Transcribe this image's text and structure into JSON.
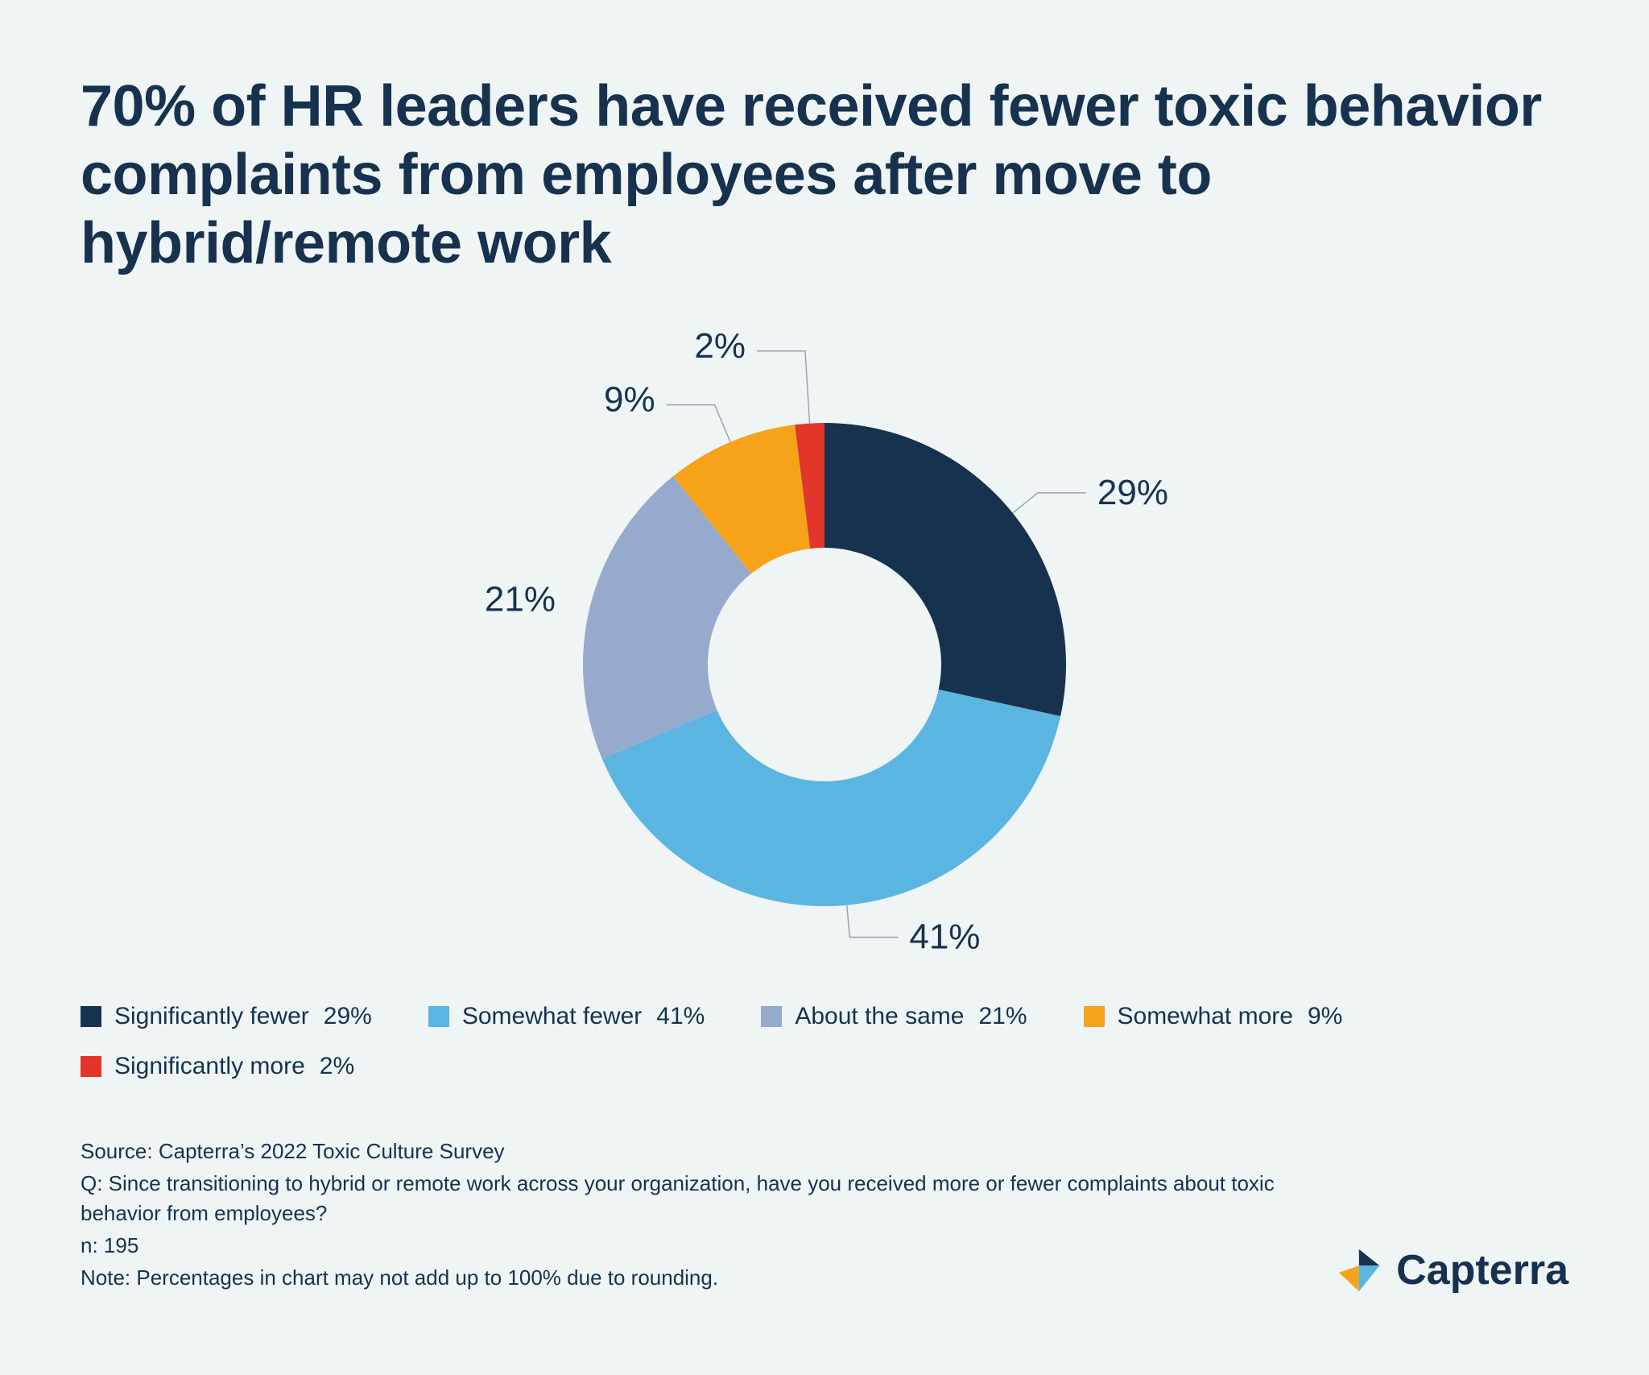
{
  "title": "70% of HR leaders have received fewer toxic behavior complaints from employees after move to hybrid/remote work",
  "chart": {
    "type": "donut",
    "background_color": "#eff4f4",
    "text_color": "#17324f",
    "outer_radius": 300,
    "inner_radius": 145,
    "label_fontsize": 44,
    "legend_fontsize": 30,
    "title_fontsize": 72,
    "title_fontweight": 800,
    "leader_color": "#9aa5b0",
    "slices": [
      {
        "label": "Significantly fewer",
        "value": 29,
        "display": "29%",
        "color": "#17324f"
      },
      {
        "label": "Somewhat fewer",
        "value": 41,
        "display": "41%",
        "color": "#5bb5e1"
      },
      {
        "label": "About the same",
        "value": 21,
        "display": "21%",
        "color": "#96aacd"
      },
      {
        "label": "Somewhat more",
        "value": 9,
        "display": "9%",
        "color": "#f6a31a"
      },
      {
        "label": "Significantly more",
        "value": 2,
        "display": "2%",
        "color": "#e2362a"
      }
    ]
  },
  "footnotes": {
    "source": "Source: Capterra’s 2022 Toxic Culture Survey",
    "question": "Q: Since transitioning to hybrid or remote work across your organization, have you received more or fewer complaints about toxic behavior from employees?",
    "n": "n: 195",
    "note": "Note: Percentages in chart may not add up to 100% due to rounding."
  },
  "brand": {
    "name": "Capterra",
    "logo_colors": {
      "left": "#f6a31a",
      "top": "#17324f",
      "right": "#5bb5e1"
    }
  }
}
